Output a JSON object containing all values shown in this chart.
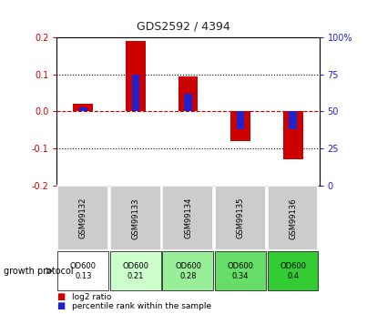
{
  "title": "GDS2592 / 4394",
  "samples": [
    "GSM99132",
    "GSM99133",
    "GSM99134",
    "GSM99135",
    "GSM99136"
  ],
  "log2_ratio": [
    0.022,
    0.19,
    0.095,
    -0.08,
    -0.13
  ],
  "percentile_rank": [
    53,
    75,
    62,
    38,
    38
  ],
  "ylim_left": [
    -0.2,
    0.2
  ],
  "ylim_right": [
    0,
    100
  ],
  "yticks_left": [
    -0.2,
    -0.1,
    0.0,
    0.1,
    0.2
  ],
  "yticks_right": [
    0,
    25,
    50,
    75,
    100
  ],
  "color_red": "#cc0000",
  "color_blue": "#2222cc",
  "growth_protocol_labels": [
    "OD600\n0.13",
    "OD600\n0.21",
    "OD600\n0.28",
    "OD600\n0.34",
    "OD600\n0.4"
  ],
  "growth_protocol_colors": [
    "#ffffff",
    "#ccffcc",
    "#99ee99",
    "#66dd66",
    "#33cc33"
  ],
  "sample_bg_color": "#cccccc",
  "legend_red_label": "log2 ratio",
  "legend_blue_label": "percentile rank within the sample",
  "growth_protocol_text": "growth protocol"
}
